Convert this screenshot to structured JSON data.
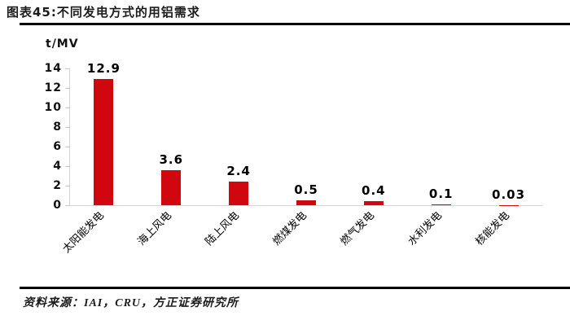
{
  "header": {
    "title": "图表45:不同发电方式的用铝需求"
  },
  "chart_data": {
    "type": "bar",
    "title": "图表45:不同发电方式的用铝需求",
    "unit_label": "t/MV",
    "categories": [
      "太阳能发电",
      "海上风电",
      "陆上风电",
      "燃煤发电",
      "燃气发电",
      "水利发电",
      "核能发电"
    ],
    "values": [
      12.9,
      3.6,
      2.4,
      0.5,
      0.4,
      0.1,
      0.03
    ],
    "value_labels": [
      "12.9",
      "3.6",
      "2.4",
      "0.5",
      "0.4",
      "0.1",
      "0.03"
    ],
    "ylim": [
      0,
      14
    ],
    "yticks": [
      0,
      2,
      4,
      6,
      8,
      10,
      12,
      14
    ],
    "grid": false,
    "legend": "none",
    "bar_color": "#d0070e",
    "axis_color": "#d6d6d6"
  },
  "footer": {
    "source": "资料来源：IAI，CRU，方正证券研究所"
  }
}
